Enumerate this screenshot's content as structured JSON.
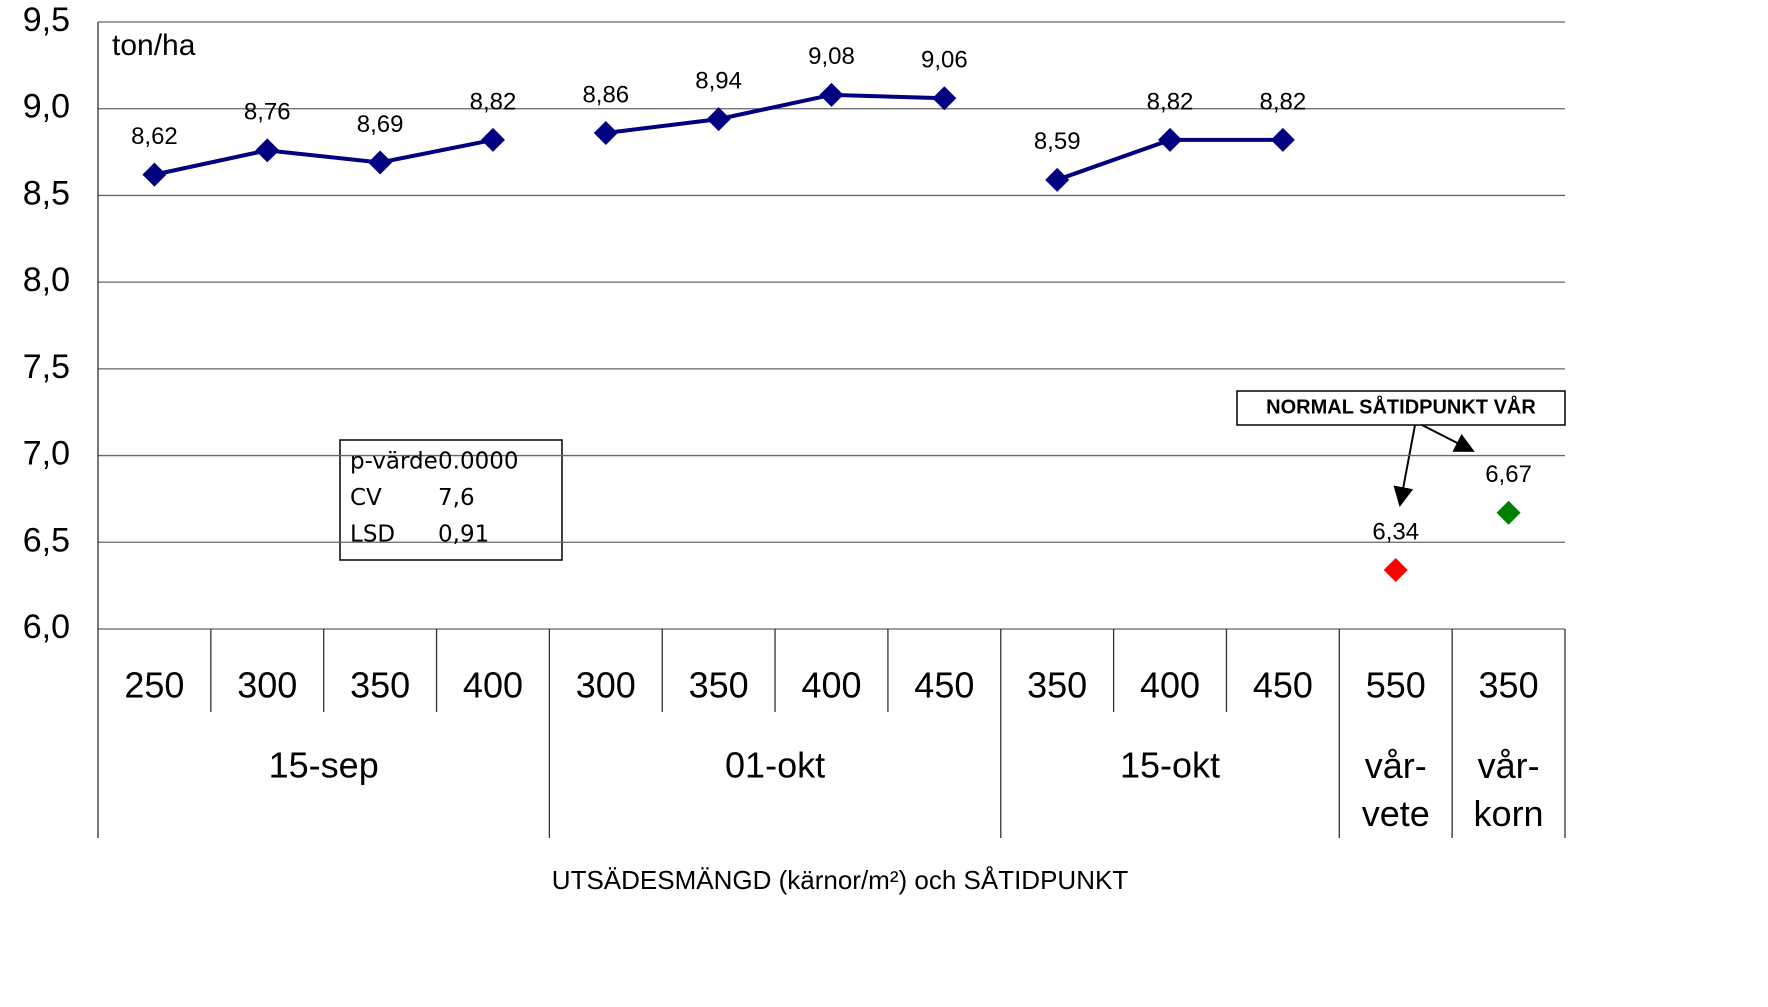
{
  "chart_data": {
    "type": "line",
    "y_unit_label": "ton/ha",
    "x_title": "UTSÄDESMÄNGD (kärnor/m²) och SÅTIDPUNKT",
    "categories": [
      "250",
      "300",
      "350",
      "400",
      "300",
      "350",
      "400",
      "450",
      "350",
      "400",
      "450",
      "550",
      "350"
    ],
    "category_groups": [
      "15-sep",
      "15-sep",
      "15-sep",
      "15-sep",
      "01-okt",
      "01-okt",
      "01-okt",
      "01-okt",
      "15-okt",
      "15-okt",
      "15-okt",
      "vår-vete",
      "vår-korn"
    ],
    "series": [
      {
        "color": "#000080",
        "values": [
          8.62,
          8.76,
          8.69,
          8.82,
          null,
          null,
          null,
          null,
          null,
          null,
          null,
          null,
          null
        ],
        "value_labels": [
          "8,62",
          "8,76",
          "8,69",
          "8,82",
          null,
          null,
          null,
          null,
          null,
          null,
          null,
          null,
          null
        ]
      },
      {
        "color": "#000080",
        "values": [
          null,
          null,
          null,
          null,
          8.86,
          8.94,
          9.08,
          9.06,
          null,
          null,
          null,
          null,
          null
        ],
        "value_labels": [
          null,
          null,
          null,
          null,
          "8,86",
          "8,94",
          "9,08",
          "9,06",
          null,
          null,
          null,
          null,
          null
        ]
      },
      {
        "color": "#000080",
        "values": [
          null,
          null,
          null,
          null,
          null,
          null,
          null,
          null,
          8.59,
          8.82,
          8.82,
          null,
          null
        ],
        "value_labels": [
          null,
          null,
          null,
          null,
          null,
          null,
          null,
          null,
          "8,59",
          "8,82",
          "8,82",
          null,
          null
        ]
      },
      {
        "color": "#ff0000",
        "values": [
          null,
          null,
          null,
          null,
          null,
          null,
          null,
          null,
          null,
          null,
          null,
          6.34,
          null
        ],
        "value_labels": [
          null,
          null,
          null,
          null,
          null,
          null,
          null,
          null,
          null,
          null,
          null,
          "6,34",
          null
        ]
      },
      {
        "color": "#008000",
        "values": [
          null,
          null,
          null,
          null,
          null,
          null,
          null,
          null,
          null,
          null,
          null,
          null,
          6.67
        ],
        "value_labels": [
          null,
          null,
          null,
          null,
          null,
          null,
          null,
          null,
          null,
          null,
          null,
          null,
          "6,67"
        ]
      }
    ],
    "ylim": [
      6.0,
      9.5
    ],
    "yticks": [
      {
        "value": 6.0,
        "label": "6,0"
      },
      {
        "value": 6.5,
        "label": "6,5"
      },
      {
        "value": 7.0,
        "label": "7,0"
      },
      {
        "value": 7.5,
        "label": "7,5"
      },
      {
        "value": 8.0,
        "label": "8,0"
      },
      {
        "value": 8.5,
        "label": "8,5"
      },
      {
        "value": 9.0,
        "label": "9,0"
      },
      {
        "value": 9.5,
        "label": "9,5"
      }
    ],
    "grid": true,
    "stats_box": [
      {
        "label": "p-värde",
        "value": "0.0000"
      },
      {
        "label": "CV",
        "value": "7,6"
      },
      {
        "label": "LSD",
        "value": "0,91"
      }
    ],
    "annotation": "NORMAL SÅTIDPUNKT VÅR"
  }
}
